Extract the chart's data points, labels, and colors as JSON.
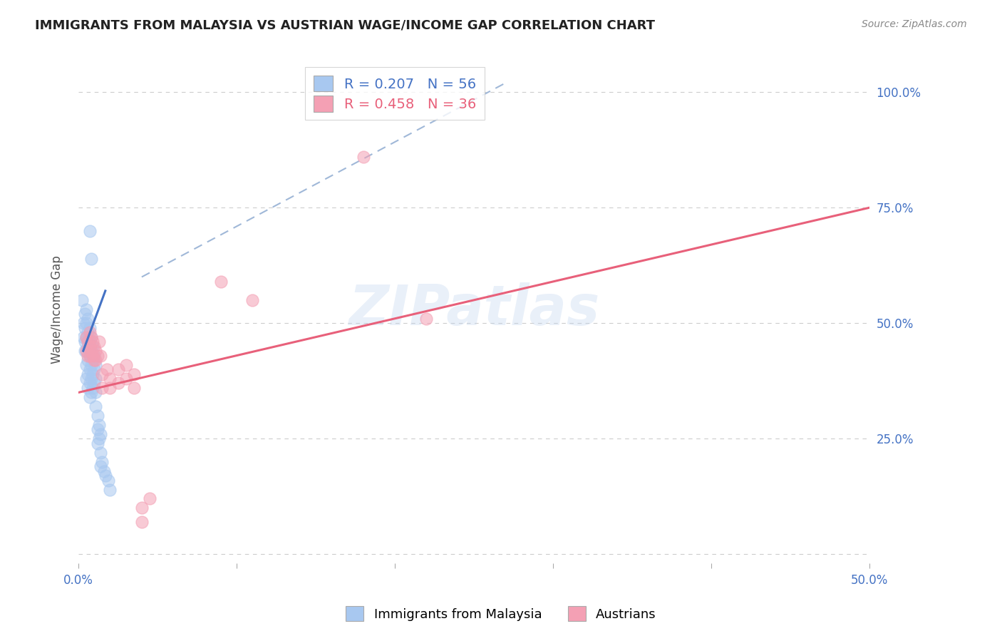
{
  "title": "IMMIGRANTS FROM MALAYSIA VS AUSTRIAN WAGE/INCOME GAP CORRELATION CHART",
  "source": "Source: ZipAtlas.com",
  "ylabel": "Wage/Income Gap",
  "xlim": [
    0.0,
    0.5
  ],
  "ylim": [
    -0.02,
    1.08
  ],
  "ytick_positions": [
    0.0,
    0.25,
    0.5,
    0.75,
    1.0
  ],
  "ytick_labels": [
    "",
    "25.0%",
    "50.0%",
    "75.0%",
    "100.0%"
  ],
  "grid_color": "#cccccc",
  "background_color": "#ffffff",
  "watermark": "ZIPatlas",
  "legend1_label": "Immigrants from Malaysia",
  "legend2_label": "Austrians",
  "R1": 0.207,
  "N1": 56,
  "R2": 0.458,
  "N2": 36,
  "blue_color": "#a8c8f0",
  "pink_color": "#f4a0b4",
  "blue_line_color": "#4472c4",
  "pink_line_color": "#e8607a",
  "blue_scatter": [
    [
      0.002,
      0.55
    ],
    [
      0.003,
      0.5
    ],
    [
      0.003,
      0.47
    ],
    [
      0.004,
      0.52
    ],
    [
      0.004,
      0.49
    ],
    [
      0.004,
      0.46
    ],
    [
      0.004,
      0.44
    ],
    [
      0.005,
      0.53
    ],
    [
      0.005,
      0.5
    ],
    [
      0.005,
      0.47
    ],
    [
      0.005,
      0.44
    ],
    [
      0.005,
      0.41
    ],
    [
      0.005,
      0.38
    ],
    [
      0.006,
      0.51
    ],
    [
      0.006,
      0.48
    ],
    [
      0.006,
      0.45
    ],
    [
      0.006,
      0.42
    ],
    [
      0.006,
      0.39
    ],
    [
      0.006,
      0.36
    ],
    [
      0.007,
      0.49
    ],
    [
      0.007,
      0.46
    ],
    [
      0.007,
      0.43
    ],
    [
      0.007,
      0.4
    ],
    [
      0.007,
      0.37
    ],
    [
      0.007,
      0.34
    ],
    [
      0.008,
      0.47
    ],
    [
      0.008,
      0.44
    ],
    [
      0.008,
      0.41
    ],
    [
      0.008,
      0.38
    ],
    [
      0.008,
      0.35
    ],
    [
      0.009,
      0.45
    ],
    [
      0.009,
      0.42
    ],
    [
      0.009,
      0.39
    ],
    [
      0.009,
      0.36
    ],
    [
      0.01,
      0.43
    ],
    [
      0.01,
      0.4
    ],
    [
      0.01,
      0.37
    ],
    [
      0.011,
      0.41
    ],
    [
      0.011,
      0.38
    ],
    [
      0.011,
      0.35
    ],
    [
      0.011,
      0.32
    ],
    [
      0.012,
      0.3
    ],
    [
      0.012,
      0.27
    ],
    [
      0.012,
      0.24
    ],
    [
      0.013,
      0.28
    ],
    [
      0.013,
      0.25
    ],
    [
      0.014,
      0.26
    ],
    [
      0.014,
      0.22
    ],
    [
      0.014,
      0.19
    ],
    [
      0.015,
      0.2
    ],
    [
      0.016,
      0.18
    ],
    [
      0.017,
      0.17
    ],
    [
      0.019,
      0.16
    ],
    [
      0.02,
      0.14
    ],
    [
      0.008,
      0.64
    ],
    [
      0.007,
      0.7
    ]
  ],
  "pink_scatter": [
    [
      0.005,
      0.47
    ],
    [
      0.005,
      0.44
    ],
    [
      0.006,
      0.46
    ],
    [
      0.006,
      0.43
    ],
    [
      0.007,
      0.48
    ],
    [
      0.007,
      0.45
    ],
    [
      0.007,
      0.43
    ],
    [
      0.008,
      0.47
    ],
    [
      0.008,
      0.44
    ],
    [
      0.009,
      0.46
    ],
    [
      0.009,
      0.43
    ],
    [
      0.01,
      0.45
    ],
    [
      0.01,
      0.42
    ],
    [
      0.011,
      0.44
    ],
    [
      0.011,
      0.42
    ],
    [
      0.012,
      0.43
    ],
    [
      0.013,
      0.46
    ],
    [
      0.014,
      0.43
    ],
    [
      0.015,
      0.39
    ],
    [
      0.015,
      0.36
    ],
    [
      0.018,
      0.4
    ],
    [
      0.02,
      0.38
    ],
    [
      0.02,
      0.36
    ],
    [
      0.025,
      0.4
    ],
    [
      0.025,
      0.37
    ],
    [
      0.03,
      0.41
    ],
    [
      0.03,
      0.38
    ],
    [
      0.035,
      0.39
    ],
    [
      0.035,
      0.36
    ],
    [
      0.04,
      0.1
    ],
    [
      0.04,
      0.07
    ],
    [
      0.045,
      0.12
    ],
    [
      0.09,
      0.59
    ],
    [
      0.11,
      0.55
    ],
    [
      0.18,
      0.86
    ],
    [
      0.22,
      0.51
    ]
  ],
  "blue_line_pts": [
    [
      0.003,
      0.44
    ],
    [
      0.017,
      0.57
    ]
  ],
  "pink_line_pts": [
    [
      0.0,
      0.35
    ],
    [
      0.5,
      0.75
    ]
  ],
  "dashed_line_pts": [
    [
      0.04,
      0.6
    ],
    [
      0.27,
      1.02
    ]
  ],
  "title_fontsize": 13,
  "source_fontsize": 10,
  "axis_tick_fontsize": 12,
  "ylabel_fontsize": 12
}
